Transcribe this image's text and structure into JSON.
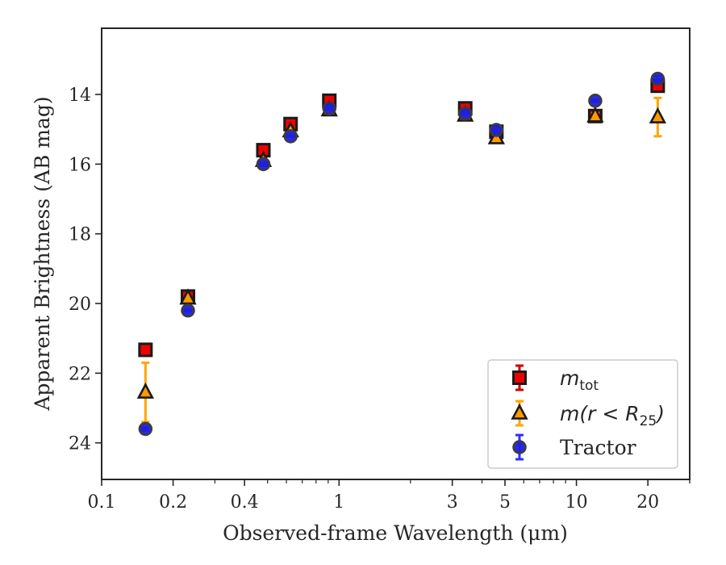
{
  "chart_data": {
    "type": "scatter",
    "xlabel": "Observed-frame Wavelength (μm)",
    "ylabel": "Apparent Brightness (AB mag)",
    "xscale": "log",
    "xlim": [
      0.1,
      30
    ],
    "ylim": [
      25.05,
      12.1
    ],
    "y_inverted": true,
    "grid": false,
    "legend_position": "lower-right",
    "x_ticks": [
      0.1,
      0.2,
      0.4,
      1,
      3,
      5,
      10,
      20
    ],
    "x_tick_labels": [
      "0.1",
      "0.2",
      "0.4",
      "1",
      "3",
      "5",
      "10",
      "20"
    ],
    "y_ticks": [
      14,
      16,
      18,
      20,
      22,
      24
    ],
    "y_tick_labels": [
      "14",
      "16",
      "18",
      "20",
      "22",
      "24"
    ],
    "series": [
      {
        "name_base": "m",
        "name_sub": "tot",
        "marker": "square",
        "color": "#ee0000",
        "edge_color": "#1a1a1a",
        "error_color": "#cc0000",
        "points": [
          {
            "x": 0.153,
            "y": 21.33,
            "err": 0.02
          },
          {
            "x": 0.231,
            "y": 19.8,
            "err": 0.02
          },
          {
            "x": 0.48,
            "y": 15.6,
            "err": 0.02
          },
          {
            "x": 0.625,
            "y": 14.85,
            "err": 0.02
          },
          {
            "x": 0.91,
            "y": 14.18,
            "err": 0.02
          },
          {
            "x": 3.4,
            "y": 14.4,
            "err": 0.02
          },
          {
            "x": 4.6,
            "y": 15.07,
            "err": 0.02
          },
          {
            "x": 12.0,
            "y": 14.62,
            "err": 0.05
          },
          {
            "x": 22.0,
            "y": 13.75,
            "err": 0.12
          }
        ]
      },
      {
        "name_base": "m(r < R",
        "name_sub": "25",
        "name_end": ")",
        "marker": "triangle",
        "color": "#ff9900",
        "edge_color": "#1a1a1a",
        "error_color": "#ffa500",
        "points": [
          {
            "x": 0.153,
            "y": 22.55,
            "err": 0.85
          },
          {
            "x": 0.231,
            "y": 19.85,
            "err": 0.05
          },
          {
            "x": 0.48,
            "y": 15.9,
            "err": 0.03
          },
          {
            "x": 0.625,
            "y": 15.05,
            "err": 0.03
          },
          {
            "x": 0.91,
            "y": 14.45,
            "err": 0.03
          },
          {
            "x": 3.4,
            "y": 14.6,
            "err": 0.03
          },
          {
            "x": 4.6,
            "y": 15.25,
            "err": 0.03
          },
          {
            "x": 12.0,
            "y": 14.62,
            "err": 0.08
          },
          {
            "x": 22.0,
            "y": 14.65,
            "err": 0.55
          }
        ]
      },
      {
        "name_base": "Tractor",
        "marker": "circle",
        "color": "#1f1fdd",
        "edge_color": "#3c3c3c",
        "error_color": "#2f2fff",
        "points": [
          {
            "x": 0.153,
            "y": 23.6,
            "err": 0.04
          },
          {
            "x": 0.231,
            "y": 20.2,
            "err": 0.02
          },
          {
            "x": 0.48,
            "y": 16.0,
            "err": 0.02
          },
          {
            "x": 0.625,
            "y": 15.2,
            "err": 0.02
          },
          {
            "x": 0.91,
            "y": 14.4,
            "err": 0.02
          },
          {
            "x": 3.4,
            "y": 14.55,
            "err": 0.02
          },
          {
            "x": 4.6,
            "y": 15.02,
            "err": 0.02
          },
          {
            "x": 12.0,
            "y": 14.18,
            "err": 0.02
          },
          {
            "x": 22.0,
            "y": 13.55,
            "err": 0.08
          }
        ]
      }
    ]
  }
}
